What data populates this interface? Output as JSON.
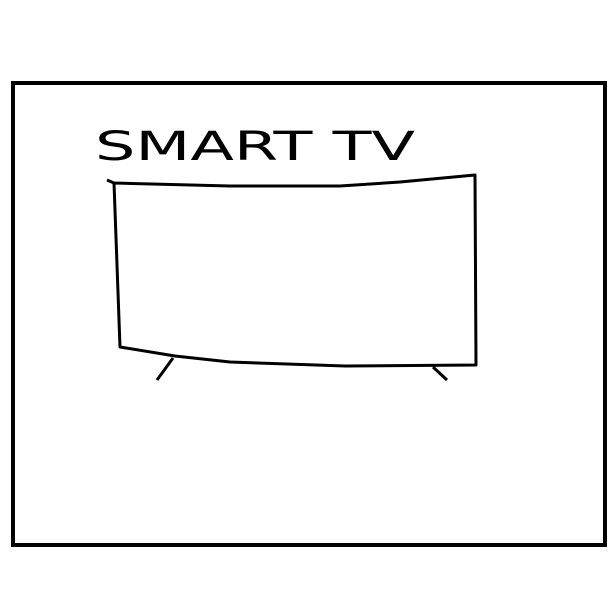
{
  "label": "SMART TV"
}
